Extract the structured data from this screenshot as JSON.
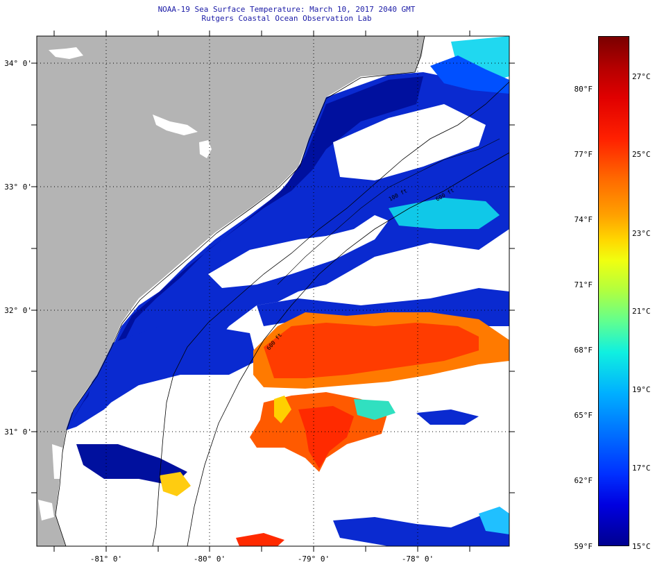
{
  "title": {
    "line1": "NOAA-19 Sea Surface Temperature:  March 10, 2017 2040 GMT",
    "line2": "Rutgers Coastal Ocean Observation Lab"
  },
  "map": {
    "lat_labels": [
      "34° 0'",
      "33° 0'",
      "32° 0'",
      "31° 0'"
    ],
    "lon_labels": [
      "-81° 0'",
      "-80° 0'",
      "-79° 0'",
      "-78° 0'"
    ],
    "isobath_labels": [
      "100 ft",
      "600 ft",
      "600 ft"
    ],
    "colors": {
      "land": "#b4b4b4",
      "cloud": "#ffffff",
      "cold": "#00109e",
      "warm": "#ff3c00"
    }
  },
  "colorbar": {
    "fahrenheit_labels": [
      "80°F",
      "77°F",
      "74°F",
      "71°F",
      "68°F",
      "65°F",
      "62°F",
      "59°F"
    ],
    "celsius_labels": [
      "27°C",
      "25°C",
      "23°C",
      "21°C",
      "19°C",
      "17°C",
      "15°C"
    ]
  }
}
